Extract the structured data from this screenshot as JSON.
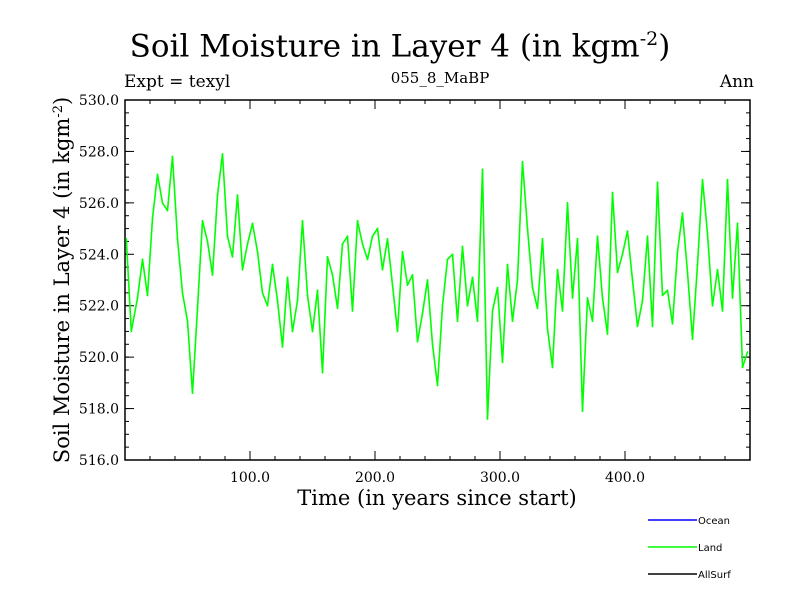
{
  "header": {
    "title": "Soil Moisture in Layer 4 (in kgm",
    "title_sup": "-2",
    "title_close": ")",
    "expt": "Expt = texyl",
    "run": "055_8_MaBP",
    "season": "Ann"
  },
  "legend": {
    "items": [
      {
        "label": "Ocean",
        "color": "#0000ff"
      },
      {
        "label": "Land",
        "color": "#00ff00"
      },
      {
        "label": "AllSurf",
        "color": "#000000"
      }
    ]
  },
  "chart_data": {
    "type": "line",
    "title": "Soil Moisture in Layer 4 (in kgm-2)",
    "xlabel": "Time (in years since start)",
    "ylabel": "Soil Moisture in Layer 4 (in kgm-2)",
    "xlim": [
      0,
      500
    ],
    "ylim": [
      516,
      530
    ],
    "x_ticks": [
      100,
      200,
      300,
      400
    ],
    "x_tick_labels": [
      "100.0",
      "200.0",
      "300.0",
      "400.0"
    ],
    "y_ticks": [
      516,
      518,
      520,
      522,
      524,
      526,
      528,
      530
    ],
    "y_tick_labels": [
      "516.0",
      "518.0",
      "520.0",
      "522.0",
      "524.0",
      "526.0",
      "528.0",
      "530.0"
    ],
    "grid": false,
    "legend_position": "bottom-right",
    "series": [
      {
        "name": "Land",
        "color": "#00ff00",
        "x": [
          1,
          5,
          10,
          14,
          18,
          22,
          26,
          30,
          34,
          38,
          42,
          46,
          50,
          54,
          58,
          62,
          66,
          70,
          74,
          78,
          82,
          86,
          90,
          94,
          98,
          102,
          106,
          110,
          114,
          118,
          122,
          126,
          130,
          134,
          138,
          142,
          146,
          150,
          154,
          158,
          162,
          166,
          170,
          174,
          178,
          182,
          186,
          190,
          194,
          198,
          202,
          206,
          210,
          214,
          218,
          222,
          226,
          230,
          234,
          238,
          242,
          246,
          250,
          254,
          258,
          262,
          266,
          270,
          274,
          278,
          282,
          286,
          290,
          294,
          298,
          302,
          306,
          310,
          314,
          318,
          322,
          326,
          330,
          334,
          338,
          342,
          346,
          350,
          354,
          358,
          362,
          366,
          370,
          374,
          378,
          382,
          386,
          390,
          394,
          398,
          402,
          406,
          410,
          414,
          418,
          422,
          426,
          430,
          434,
          438,
          442,
          446,
          450,
          454,
          458,
          462,
          466,
          470,
          474,
          478,
          482,
          486,
          490,
          494,
          498
        ],
        "values": [
          524.6,
          521.0,
          522.3,
          523.8,
          522.4,
          525.4,
          527.1,
          526.0,
          525.7,
          527.8,
          524.6,
          522.5,
          521.4,
          518.6,
          521.9,
          525.3,
          524.5,
          523.2,
          526.3,
          527.9,
          524.7,
          523.9,
          526.3,
          523.4,
          524.4,
          525.2,
          524.1,
          522.5,
          522.0,
          523.6,
          522.2,
          520.4,
          523.1,
          521.0,
          522.2,
          525.3,
          522.4,
          521.0,
          522.6,
          519.4,
          523.9,
          523.2,
          521.9,
          524.4,
          524.7,
          521.8,
          525.3,
          524.4,
          523.8,
          524.7,
          525.0,
          523.4,
          524.6,
          522.8,
          521.0,
          524.1,
          522.8,
          523.2,
          520.6,
          521.7,
          523.0,
          520.5,
          518.9,
          522.0,
          523.8,
          524.0,
          521.4,
          524.3,
          522.0,
          523.1,
          521.4,
          527.3,
          517.6,
          521.8,
          522.7,
          519.8,
          523.6,
          521.4,
          523.0,
          527.6,
          525.0,
          522.7,
          521.9,
          524.6,
          521.1,
          519.6,
          523.4,
          521.8,
          526.0,
          522.3,
          524.6,
          517.9,
          522.3,
          521.4,
          524.7,
          522.3,
          520.9,
          526.4,
          523.3,
          524.0,
          524.9,
          523.0,
          521.2,
          522.2,
          524.7,
          521.2,
          526.8,
          522.4,
          522.6,
          521.3,
          524.1,
          525.6,
          523.3,
          520.7,
          523.6,
          526.9,
          524.8,
          522.0,
          523.4,
          521.8,
          526.9,
          522.3,
          525.2,
          519.6,
          520.2
        ]
      }
    ]
  }
}
